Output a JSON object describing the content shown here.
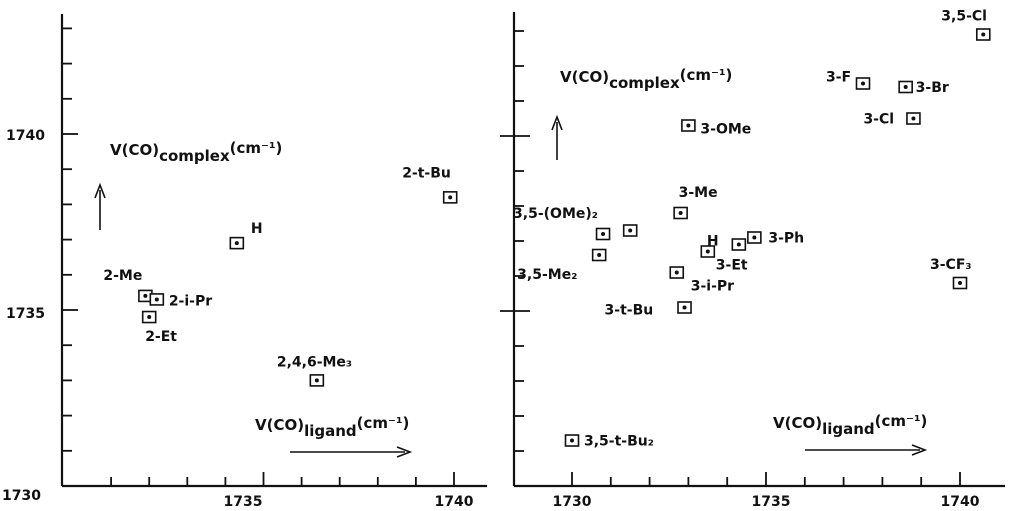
{
  "chart_data": [
    {
      "type": "scatter",
      "title": "",
      "xlim": [
        1730,
        1741
      ],
      "ylim": [
        1730,
        1744
      ],
      "x_ticks": [
        1730,
        1735,
        1740
      ],
      "y_ticks": [
        1730,
        1735,
        1740
      ],
      "x_tick_labels": [
        "1730",
        "1735",
        "1740"
      ],
      "y_tick_labels": [
        "1730",
        "1735",
        "1740"
      ],
      "x_axis_title": {
        "main": "V(CO)",
        "sub": "ligand",
        "unit": "(cm⁻¹)"
      },
      "y_axis_title": {
        "main": "V(CO)",
        "sub": "complex",
        "unit": "(cm⁻¹)"
      },
      "points": [
        {
          "label": "H",
          "x": 1734.3,
          "y": 1736.9
        },
        {
          "label": "2-Me",
          "x": 1731.9,
          "y": 1735.4
        },
        {
          "label": "2-i-Pr",
          "x": 1732.2,
          "y": 1735.3
        },
        {
          "label": "2-Et",
          "x": 1732.0,
          "y": 1734.8
        },
        {
          "label": "2-t-Bu",
          "x": 1739.9,
          "y": 1738.2
        },
        {
          "label": "2,4,6-Me₃",
          "x": 1736.4,
          "y": 1733.0
        }
      ]
    },
    {
      "type": "scatter",
      "title": "",
      "xlim": [
        1729.5,
        1741
      ],
      "ylim": [
        1730.3,
        1743.6
      ],
      "x_ticks": [
        1730,
        1735,
        1740
      ],
      "y_ticks": [
        1735,
        1740
      ],
      "x_tick_labels": [
        "1730",
        "1735",
        "1740"
      ],
      "x_axis_title": {
        "main": "V(CO)",
        "sub": "ligand",
        "unit": "(cm⁻¹)"
      },
      "y_axis_title": {
        "main": "V(CO)",
        "sub": "complex",
        "unit": "(cm⁻¹)"
      },
      "points": [
        {
          "label": "3,5-Cl",
          "x": 1740.6,
          "y": 1742.9
        },
        {
          "label": "3-F",
          "x": 1737.5,
          "y": 1741.5
        },
        {
          "label": "3-Br",
          "x": 1738.6,
          "y": 1741.4
        },
        {
          "label": "3-Cl",
          "x": 1738.8,
          "y": 1740.5
        },
        {
          "label": "3-OMe",
          "x": 1733.0,
          "y": 1740.3
        },
        {
          "label": "3-Me",
          "x": 1732.8,
          "y": 1737.8
        },
        {
          "label": "3,5-(OMe)₂",
          "x": 1730.8,
          "y": 1737.2
        },
        {
          "label": "",
          "x": 1731.5,
          "y": 1737.3
        },
        {
          "label": "3-Ph",
          "x": 1734.7,
          "y": 1737.1
        },
        {
          "label": "H",
          "x": 1734.3,
          "y": 1736.9
        },
        {
          "label": "3-Et",
          "x": 1733.5,
          "y": 1736.7
        },
        {
          "label": "3,5-Me₂",
          "x": 1730.7,
          "y": 1736.6
        },
        {
          "label": "3-i-Pr",
          "x": 1732.7,
          "y": 1736.1
        },
        {
          "label": "3-t-Bu",
          "x": 1732.9,
          "y": 1735.1
        },
        {
          "label": "3-CF₃",
          "x": 1740.0,
          "y": 1735.8
        },
        {
          "label": "3,5-t-Bu₂",
          "x": 1730.0,
          "y": 1731.3
        }
      ]
    }
  ]
}
